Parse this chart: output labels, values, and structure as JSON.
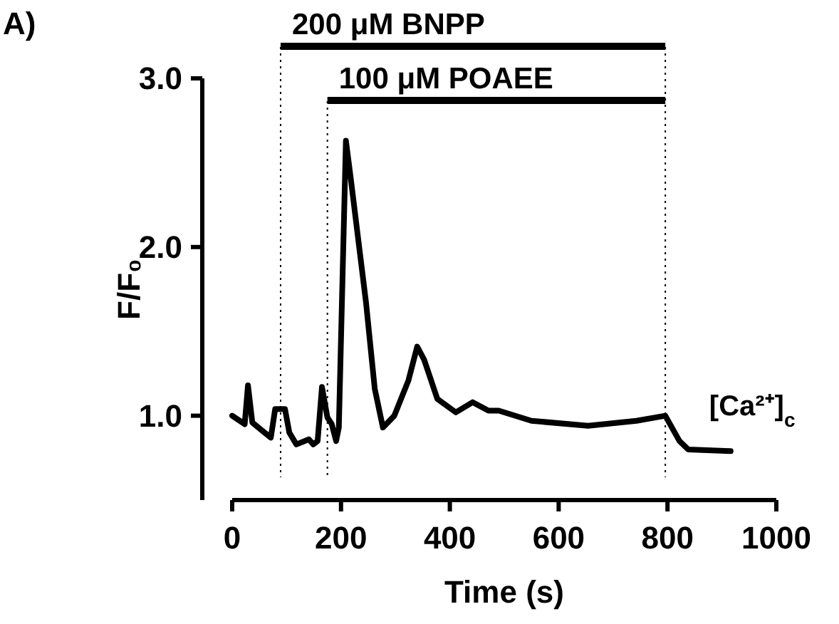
{
  "chart_data": {
    "type": "line",
    "xlabel": "Time (s)",
    "ylabel": "F/F₀",
    "xlim": [
      0,
      1000
    ],
    "ylim": [
      0.5,
      3.0
    ],
    "xticks": [
      0,
      200,
      400,
      600,
      800,
      1000
    ],
    "yticks": [
      {
        "value": 1,
        "label": "1.0"
      },
      {
        "value": 2,
        "label": "2.0"
      },
      {
        "value": 3,
        "label": "3.0"
      }
    ],
    "grid": false,
    "marker": "none",
    "line_style": "solid",
    "annotations": [
      "A)"
    ],
    "ref_lines": [
      {
        "axis": "x",
        "value": 89,
        "label": "200 μM BNPP",
        "line_style": "dotted",
        "color": "#000000"
      },
      {
        "axis": "x",
        "value": 175,
        "label": "100 μM POAEE",
        "line_style": "dotted",
        "color": "#000000"
      },
      {
        "axis": "x",
        "value": 796,
        "line_style": "dotted",
        "color": "#000000"
      }
    ],
    "series": [
      {
        "name": "[Ca²⁺]$_{c}$",
        "color": "#000000",
        "x": [
          0,
          23,
          29,
          37,
          52,
          71,
          79,
          89,
          97,
          105,
          118,
          141,
          149,
          157,
          165,
          175,
          183,
          191,
          196,
          209,
          217,
          246,
          262,
          277,
          298,
          324,
          340,
          353,
          377,
          411,
          442,
          471,
          490,
          550,
          654,
          743,
          796,
          822,
          838,
          916
        ],
        "values": [
          1.0,
          0.95,
          1.18,
          0.96,
          0.92,
          0.87,
          1.04,
          1.04,
          1.04,
          0.9,
          0.83,
          0.86,
          0.83,
          0.85,
          1.17,
          0.99,
          0.95,
          0.85,
          0.93,
          2.63,
          2.43,
          1.67,
          1.16,
          0.93,
          1.0,
          1.21,
          1.41,
          1.33,
          1.1,
          1.02,
          1.08,
          1.03,
          1.03,
          0.97,
          0.94,
          0.97,
          1.0,
          0.85,
          0.8,
          0.79
        ]
      }
    ]
  }
}
